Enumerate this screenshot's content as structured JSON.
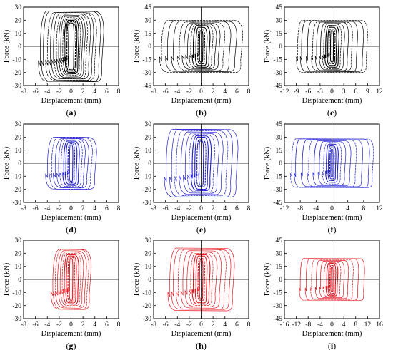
{
  "figure": {
    "layout": "3x3 grid",
    "background": "#ffffff",
    "frame_color": "#000000"
  },
  "chart_data": [
    {
      "id": "a",
      "label": "(a)",
      "type": "line",
      "color": "#000000",
      "xlabel": "Displacement (mm)",
      "ylabel": "Force (kN)",
      "xlim": [
        -8,
        8
      ],
      "ylim": [
        -30,
        30
      ],
      "xticks": [
        -8,
        -6,
        -4,
        -2,
        0,
        2,
        4,
        6,
        8
      ],
      "yticks": [
        -30,
        -20,
        -10,
        0,
        10,
        20,
        30
      ],
      "loops": [
        {
          "xmax": 0.5,
          "fmax": 18
        },
        {
          "xmax": 0.8,
          "fmax": 19
        },
        {
          "xmax": 1.0,
          "fmax": 20
        },
        {
          "xmax": 1.3,
          "fmax": 21
        },
        {
          "xmax": 1.6,
          "fmax": 22
        },
        {
          "xmax": 2.0,
          "fmax": 23
        },
        {
          "xmax": 2.4,
          "fmax": 24
        },
        {
          "xmax": 2.8,
          "fmax": 25
        },
        {
          "xmax": 3.3,
          "fmax": 25
        },
        {
          "xmax": 3.8,
          "fmax": 26
        },
        {
          "xmax": 4.3,
          "fmax": 26
        },
        {
          "xmax": 5.0,
          "fmax": 27
        },
        {
          "xmax": 5.5,
          "fmax": 27
        }
      ]
    },
    {
      "id": "b",
      "label": "(b)",
      "type": "line",
      "color": "#000000",
      "xlabel": "Displacement (mm)",
      "ylabel": "Force (kN)",
      "xlim": [
        -8,
        8
      ],
      "ylim": [
        -45,
        45
      ],
      "xticks": [
        -8,
        -6,
        -4,
        -2,
        0,
        2,
        4,
        6,
        8
      ],
      "yticks": [
        -45,
        -30,
        -15,
        0,
        15,
        30,
        45
      ],
      "loops": [
        {
          "xmax": 0.3,
          "fmax": 18
        },
        {
          "xmax": 0.6,
          "fmax": 20
        },
        {
          "xmax": 1.0,
          "fmax": 22
        },
        {
          "xmax": 1.5,
          "fmax": 24
        },
        {
          "xmax": 2.0,
          "fmax": 25
        },
        {
          "xmax": 2.6,
          "fmax": 26
        },
        {
          "xmax": 3.2,
          "fmax": 27
        },
        {
          "xmax": 4.0,
          "fmax": 28
        },
        {
          "xmax": 5.0,
          "fmax": 29
        },
        {
          "xmax": 6.0,
          "fmax": 29
        },
        {
          "xmax": 7.0,
          "fmax": 30
        }
      ]
    },
    {
      "id": "c",
      "label": "(c)",
      "type": "line",
      "color": "#000000",
      "xlabel": "Displacement (mm)",
      "ylabel": "Force (kN)",
      "xlim": [
        -12,
        12
      ],
      "ylim": [
        -45,
        45
      ],
      "xticks": [
        -12,
        -9,
        -6,
        -3,
        0,
        3,
        6,
        9,
        12
      ],
      "yticks": [
        -45,
        -30,
        -15,
        0,
        15,
        30,
        45
      ],
      "loops": [
        {
          "xmax": 0.4,
          "fmax": 18
        },
        {
          "xmax": 0.8,
          "fmax": 20
        },
        {
          "xmax": 1.2,
          "fmax": 22
        },
        {
          "xmax": 1.8,
          "fmax": 24
        },
        {
          "xmax": 2.4,
          "fmax": 26
        },
        {
          "xmax": 3.2,
          "fmax": 27
        },
        {
          "xmax": 4.2,
          "fmax": 28
        },
        {
          "xmax": 5.2,
          "fmax": 28
        },
        {
          "xmax": 6.5,
          "fmax": 29
        },
        {
          "xmax": 8.0,
          "fmax": 29
        },
        {
          "xmax": 9.0,
          "fmax": 30
        }
      ]
    },
    {
      "id": "d",
      "label": "(d)",
      "type": "line",
      "color": "#1f1fd6",
      "xlabel": "Displacement (mm)",
      "ylabel": "Force (kN)",
      "xlim": [
        -8,
        8
      ],
      "ylim": [
        -30,
        30
      ],
      "xticks": [
        -8,
        -6,
        -4,
        -2,
        0,
        2,
        4,
        6,
        8
      ],
      "yticks": [
        -30,
        -20,
        -10,
        0,
        10,
        20,
        30
      ],
      "loops": [
        {
          "xmax": 0.3,
          "fmax": 14
        },
        {
          "xmax": 0.6,
          "fmax": 15
        },
        {
          "xmax": 1.0,
          "fmax": 16
        },
        {
          "xmax": 1.4,
          "fmax": 17
        },
        {
          "xmax": 1.9,
          "fmax": 18
        },
        {
          "xmax": 2.4,
          "fmax": 19
        },
        {
          "xmax": 3.0,
          "fmax": 19
        },
        {
          "xmax": 3.6,
          "fmax": 20
        },
        {
          "xmax": 4.3,
          "fmax": 20
        }
      ]
    },
    {
      "id": "e",
      "label": "(e)",
      "type": "line",
      "color": "#1f1fd6",
      "xlabel": "Displacement (mm)",
      "ylabel": "Force (kN)",
      "xlim": [
        -8,
        8
      ],
      "ylim": [
        -30,
        30
      ],
      "xticks": [
        -8,
        -6,
        -4,
        -2,
        0,
        2,
        4,
        6,
        8
      ],
      "yticks": [
        -30,
        -20,
        -10,
        0,
        10,
        20,
        30
      ],
      "loops": [
        {
          "xmax": 0.4,
          "fmax": 17
        },
        {
          "xmax": 0.8,
          "fmax": 18
        },
        {
          "xmax": 1.2,
          "fmax": 20
        },
        {
          "xmax": 1.7,
          "fmax": 21
        },
        {
          "xmax": 2.3,
          "fmax": 22
        },
        {
          "xmax": 3.0,
          "fmax": 23
        },
        {
          "xmax": 3.7,
          "fmax": 24
        },
        {
          "xmax": 4.5,
          "fmax": 25
        },
        {
          "xmax": 5.3,
          "fmax": 26
        },
        {
          "xmax": 6.2,
          "fmax": 26
        }
      ]
    },
    {
      "id": "f",
      "label": "(f)",
      "type": "line",
      "color": "#1f1fd6",
      "xlabel": "Displacement (mm)",
      "ylabel": "Force (kN)",
      "xlim": [
        -12,
        12
      ],
      "ylim": [
        -45,
        45
      ],
      "xticks": [
        -12,
        -8,
        -4,
        0,
        4,
        8,
        12
      ],
      "yticks": [
        -45,
        -30,
        -15,
        0,
        15,
        30,
        45
      ],
      "loops": [
        {
          "xmax": 0.3,
          "fmax": 16
        },
        {
          "xmax": 0.6,
          "fmax": 18
        },
        {
          "xmax": 1.0,
          "fmax": 20
        },
        {
          "xmax": 1.6,
          "fmax": 22
        },
        {
          "xmax": 2.4,
          "fmax": 24
        },
        {
          "xmax": 3.5,
          "fmax": 25
        },
        {
          "xmax": 4.8,
          "fmax": 26
        },
        {
          "xmax": 6.2,
          "fmax": 27
        },
        {
          "xmax": 7.8,
          "fmax": 27
        },
        {
          "xmax": 9.5,
          "fmax": 28
        },
        {
          "xmax": 10.5,
          "fmax": 28
        }
      ]
    },
    {
      "id": "g",
      "label": "(g)",
      "type": "line",
      "color": "#e8141c",
      "xlabel": "Displacement (mm)",
      "ylabel": "Force (kN)",
      "xlim": [
        -8,
        8
      ],
      "ylim": [
        -30,
        30
      ],
      "xticks": [
        -8,
        -6,
        -4,
        -2,
        0,
        2,
        4,
        6,
        8
      ],
      "yticks": [
        -30,
        -20,
        -10,
        0,
        10,
        20,
        30
      ],
      "loops": [
        {
          "xmax": 0.3,
          "fmax": 16
        },
        {
          "xmax": 0.6,
          "fmax": 17
        },
        {
          "xmax": 0.9,
          "fmax": 18
        },
        {
          "xmax": 1.3,
          "fmax": 19
        },
        {
          "xmax": 1.7,
          "fmax": 20
        },
        {
          "xmax": 2.1,
          "fmax": 21
        },
        {
          "xmax": 2.6,
          "fmax": 22
        },
        {
          "xmax": 3.0,
          "fmax": 23
        },
        {
          "xmax": 3.4,
          "fmax": 23
        }
      ]
    },
    {
      "id": "h",
      "label": "(h)",
      "type": "line",
      "color": "#e8141c",
      "xlabel": "Displacement (mm)",
      "ylabel": "Force (kN)",
      "xlim": [
        -8,
        8
      ],
      "ylim": [
        -30,
        30
      ],
      "xticks": [
        -8,
        -6,
        -4,
        -2,
        0,
        2,
        4,
        6,
        8
      ],
      "yticks": [
        -30,
        -20,
        -10,
        0,
        10,
        20,
        30
      ],
      "loops": [
        {
          "xmax": 0.3,
          "fmax": 15
        },
        {
          "xmax": 0.6,
          "fmax": 16
        },
        {
          "xmax": 1.0,
          "fmax": 18
        },
        {
          "xmax": 1.5,
          "fmax": 19
        },
        {
          "xmax": 2.0,
          "fmax": 20
        },
        {
          "xmax": 2.7,
          "fmax": 21
        },
        {
          "xmax": 3.4,
          "fmax": 22
        },
        {
          "xmax": 4.2,
          "fmax": 23
        },
        {
          "xmax": 5.0,
          "fmax": 23
        },
        {
          "xmax": 5.6,
          "fmax": 24
        }
      ]
    },
    {
      "id": "i",
      "label": "(i)",
      "type": "line",
      "color": "#e8141c",
      "xlabel": "Displacement (mm)",
      "ylabel": "Force (kN)",
      "xlim": [
        -16,
        16
      ],
      "ylim": [
        -45,
        45
      ],
      "xticks": [
        -16,
        -12,
        -8,
        -4,
        0,
        4,
        8,
        12,
        16
      ],
      "yticks": [
        -45,
        -30,
        -15,
        0,
        15,
        30,
        45
      ],
      "loops": [
        {
          "xmax": 0.4,
          "fmax": 14
        },
        {
          "xmax": 0.8,
          "fmax": 16
        },
        {
          "xmax": 1.3,
          "fmax": 18
        },
        {
          "xmax": 2.0,
          "fmax": 19
        },
        {
          "xmax": 3.0,
          "fmax": 20
        },
        {
          "xmax": 4.2,
          "fmax": 21
        },
        {
          "xmax": 5.6,
          "fmax": 22
        },
        {
          "xmax": 7.2,
          "fmax": 23
        },
        {
          "xmax": 9.0,
          "fmax": 24
        },
        {
          "xmax": 11.0,
          "fmax": 24
        }
      ]
    }
  ]
}
